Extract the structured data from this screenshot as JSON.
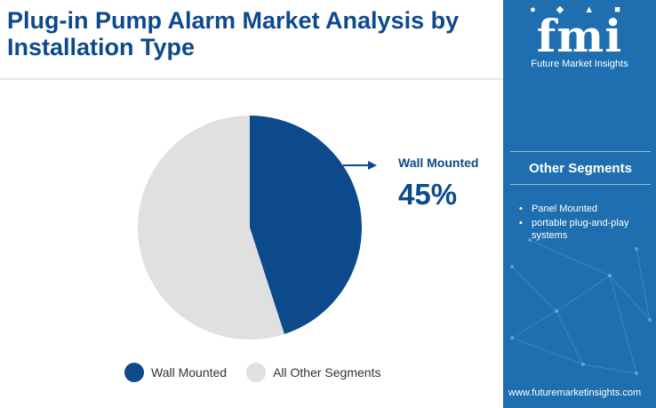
{
  "title": "Plug-in Pump Alarm Market Analysis by Installation Type",
  "callout": {
    "label": "Wall Mounted",
    "value": "45%"
  },
  "sidebar": {
    "logo_mark": "fmi",
    "logo_sub": "Future Market Insights",
    "segments_heading": "Other Segments",
    "segments": [
      "Panel Mounted",
      "portable plug-and-play systems"
    ],
    "url": "www.futuremarketinsights.com"
  },
  "colors": {
    "primary": "#0d4a8c",
    "secondary": "#e0e0e0",
    "sidebar": "#1f6fb0"
  },
  "chart_data": {
    "type": "pie",
    "title": "Plug-in Pump Alarm Market Analysis by Installation Type",
    "categories": [
      "Wall Mounted",
      "All Other Segments"
    ],
    "values": [
      45,
      55
    ],
    "unit": "%",
    "colors": [
      "#0d4a8c",
      "#e0e0e0"
    ],
    "legend": "bottom"
  }
}
